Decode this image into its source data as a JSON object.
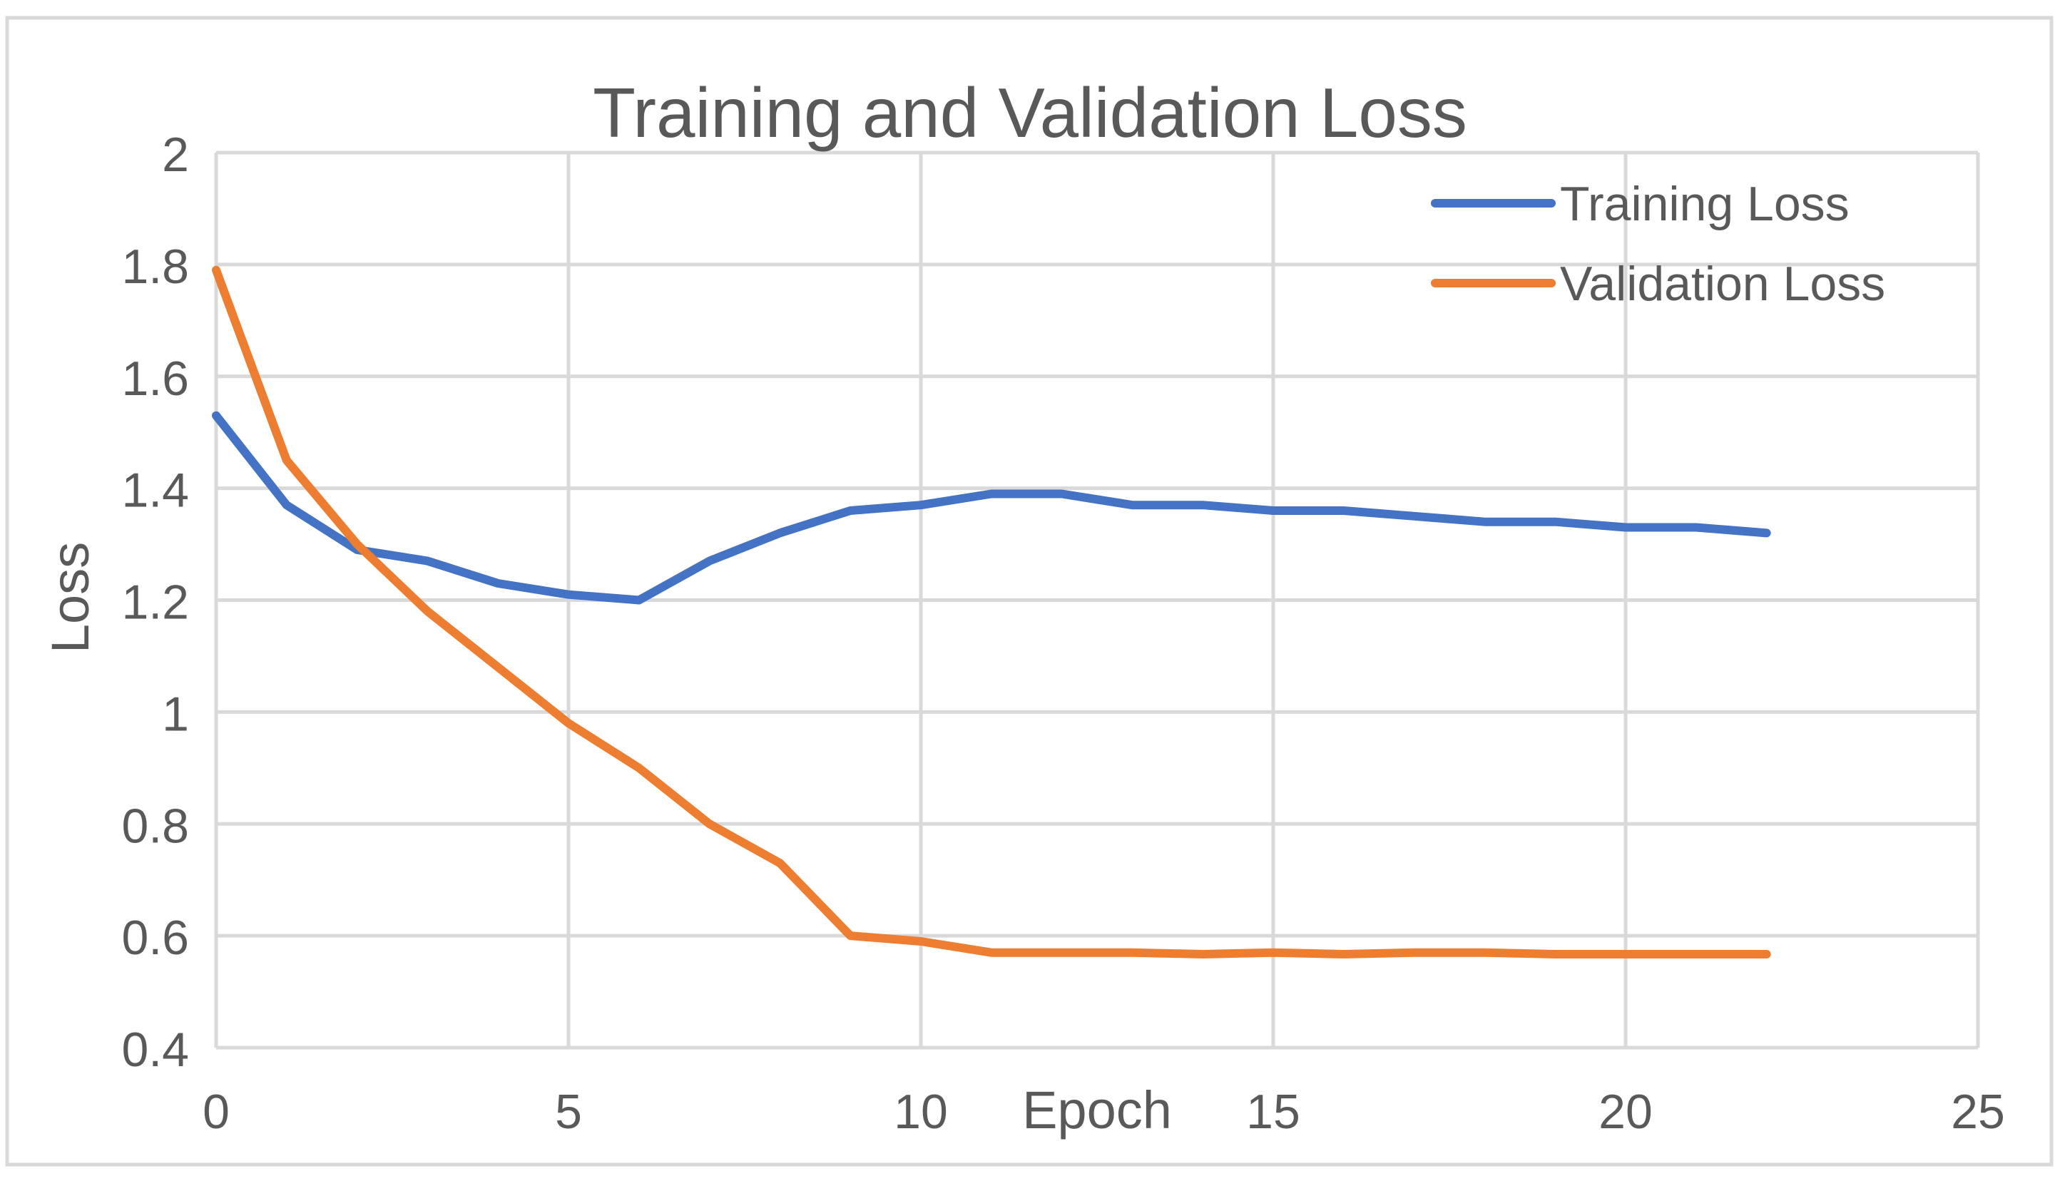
{
  "chart_data": {
    "type": "line",
    "title": "Training and Validation Loss",
    "xlabel": "Epoch",
    "ylabel": "Loss",
    "xlim": [
      0,
      25
    ],
    "ylim": [
      0.4,
      2
    ],
    "x_ticks": [
      0,
      5,
      10,
      15,
      20,
      25
    ],
    "x_tick_labels": [
      "0",
      "5",
      "10",
      "15",
      "20",
      "25"
    ],
    "y_ticks": [
      0.4,
      0.6,
      0.8,
      1,
      1.2,
      1.4,
      1.6,
      1.8,
      2
    ],
    "y_tick_labels": [
      "0.4",
      "0.6",
      "0.8",
      "1",
      "1.2",
      "1.4",
      "1.6",
      "1.8",
      "2"
    ],
    "grid": true,
    "legend_position": "top-right",
    "x": [
      0,
      1,
      2,
      3,
      4,
      5,
      6,
      7,
      8,
      9,
      10,
      11,
      12,
      13,
      14,
      15,
      16,
      17,
      18,
      19,
      20,
      21,
      22
    ],
    "series": [
      {
        "name": "Training Loss",
        "color": "#4472C4",
        "values": [
          1.53,
          1.37,
          1.29,
          1.27,
          1.23,
          1.21,
          1.2,
          1.27,
          1.32,
          1.36,
          1.37,
          1.39,
          1.39,
          1.37,
          1.37,
          1.36,
          1.36,
          1.35,
          1.34,
          1.34,
          1.33,
          1.33,
          1.32
        ]
      },
      {
        "name": "Validation Loss",
        "color": "#ED7D31",
        "values": [
          1.79,
          1.45,
          1.3,
          1.18,
          1.08,
          0.98,
          0.9,
          0.8,
          0.73,
          0.6,
          0.59,
          0.57,
          0.57,
          0.57,
          0.567,
          0.57,
          0.567,
          0.57,
          0.57,
          0.567,
          0.567,
          0.567,
          0.567
        ]
      }
    ]
  }
}
